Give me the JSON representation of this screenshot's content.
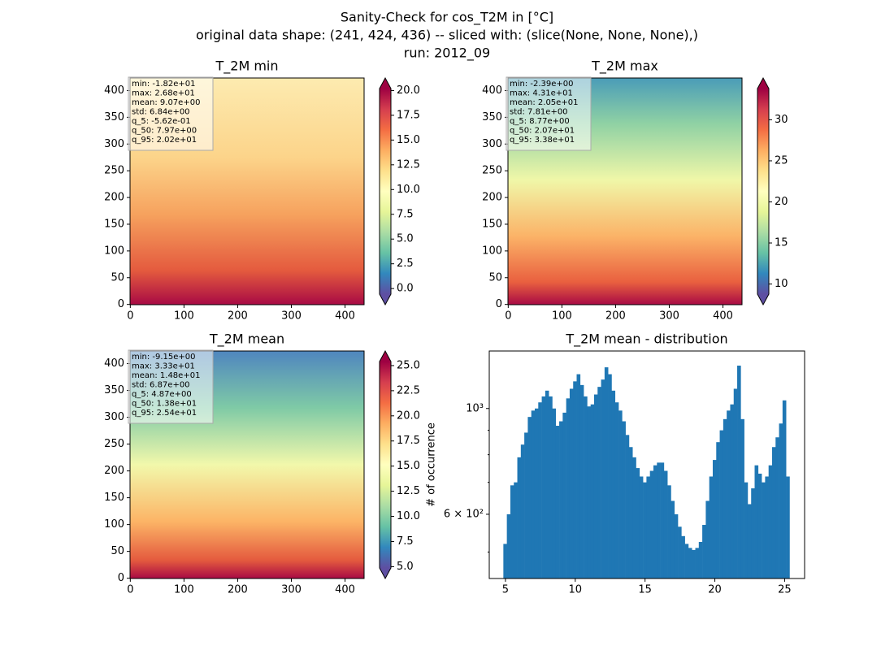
{
  "figure": {
    "title_lines": [
      "Sanity-Check for cos_T2M in [°C]",
      "original data shape: (241, 424, 436) -- sliced with: (slice(None, None, None),)",
      "run: 2012_09"
    ]
  },
  "chart_data": [
    {
      "type": "heatmap",
      "title": "T_2M min",
      "colormap": "Spectral_r",
      "xlim": [
        -0.5,
        435.5
      ],
      "xticks": [
        0,
        100,
        200,
        300,
        400
      ],
      "ylim": [
        -0.5,
        423.5
      ],
      "yticks": [
        0,
        50,
        100,
        150,
        200,
        250,
        300,
        350,
        400
      ],
      "clim": [
        -0.562,
        20.2
      ],
      "cticks": [
        {
          "value": 0,
          "label": "0.0"
        },
        {
          "value": 2.5,
          "label": "2.5"
        },
        {
          "value": 5,
          "label": "5.0"
        },
        {
          "value": 7.5,
          "label": "7.5"
        },
        {
          "value": 10,
          "label": "10.0"
        },
        {
          "value": 12.5,
          "label": "12.5"
        },
        {
          "value": 15,
          "label": "15.0"
        },
        {
          "value": 17.5,
          "label": "17.5"
        },
        {
          "value": 20,
          "label": "20.0"
        }
      ],
      "stats": [
        "min: -1.82e+01",
        "max: 2.68e+01",
        "mean: 9.07e+00",
        "std: 6.84e+00",
        "q_5: -5.62e-01",
        "q_50: 7.97e+00",
        "q_95: 2.02e+01"
      ]
    },
    {
      "type": "heatmap",
      "title": "T_2M max",
      "colormap": "Spectral_r",
      "xlim": [
        -0.5,
        435.5
      ],
      "xticks": [
        0,
        100,
        200,
        300,
        400
      ],
      "ylim": [
        -0.5,
        423.5
      ],
      "yticks": [
        0,
        50,
        100,
        150,
        200,
        250,
        300,
        350,
        400
      ],
      "clim": [
        8.77,
        33.8
      ],
      "cticks": [
        10,
        15,
        20,
        25,
        30
      ],
      "stats": [
        "min: -2.39e+00",
        "max: 4.31e+01",
        "mean: 2.05e+01",
        "std: 7.81e+00",
        "q_5: 8.77e+00",
        "q_50: 2.07e+01",
        "q_95: 3.38e+01"
      ]
    },
    {
      "type": "heatmap",
      "title": "T_2M mean",
      "colormap": "Spectral_r",
      "xlim": [
        -0.5,
        435.5
      ],
      "xticks": [
        0,
        100,
        200,
        300,
        400
      ],
      "ylim": [
        -0.5,
        423.5
      ],
      "yticks": [
        0,
        50,
        100,
        150,
        200,
        250,
        300,
        350,
        400
      ],
      "clim": [
        4.87,
        25.4
      ],
      "cticks": [
        {
          "value": 5,
          "label": "5.0"
        },
        {
          "value": 7.5,
          "label": "7.5"
        },
        {
          "value": 10,
          "label": "10.0"
        },
        {
          "value": 12.5,
          "label": "12.5"
        },
        {
          "value": 15,
          "label": "15.0"
        },
        {
          "value": 17.5,
          "label": "17.5"
        },
        {
          "value": 20,
          "label": "20.0"
        },
        {
          "value": 22.5,
          "label": "22.5"
        },
        {
          "value": 25,
          "label": "25.0"
        }
      ],
      "stats": [
        "min: -9.15e+00",
        "max: 3.33e+01",
        "mean: 1.48e+01",
        "std: 6.87e+00",
        "q_5: 4.87e+00",
        "q_50: 1.38e+01",
        "q_95: 2.54e+01"
      ]
    },
    {
      "type": "histogram",
      "title": "T_2M mean - distribution",
      "ylabel": "# of occurrence",
      "color": "#1f77b4",
      "log_y": true,
      "xlim": [
        3.84,
        26.43
      ],
      "xticks": [
        5,
        10,
        15,
        20,
        25
      ],
      "ylim": [
        440,
        1320
      ],
      "yticks": [
        {
          "value": 600,
          "label": "6 × 10²"
        },
        {
          "value": 1000,
          "label": "10³"
        }
      ],
      "yminorticks": [
        500,
        700,
        800,
        900
      ],
      "bins": [
        4.85,
        5.1,
        5.35,
        5.6,
        5.85,
        6.1,
        6.35,
        6.6,
        6.85,
        7.1,
        7.35,
        7.6,
        7.85,
        8.1,
        8.35,
        8.6,
        8.85,
        9.1,
        9.35,
        9.6,
        9.85,
        10.1,
        10.35,
        10.6,
        10.85,
        11.1,
        11.35,
        11.6,
        11.85,
        12.1,
        12.35,
        12.6,
        12.85,
        13.1,
        13.35,
        13.6,
        13.85,
        14.1,
        14.35,
        14.6,
        14.85,
        15.1,
        15.35,
        15.6,
        15.85,
        16.1,
        16.35,
        16.6,
        16.85,
        17.1,
        17.35,
        17.6,
        17.85,
        18.1,
        18.35,
        18.6,
        18.85,
        19.1,
        19.35,
        19.6,
        19.85,
        20.1,
        20.35,
        20.6,
        20.85,
        21.1,
        21.35,
        21.6,
        21.85,
        22.1,
        22.35,
        22.6,
        22.85,
        23.1,
        23.35,
        23.6,
        23.85,
        24.1,
        24.35,
        24.6,
        24.85,
        25.1,
        25.35
      ],
      "values": [
        520,
        600,
        690,
        700,
        790,
        840,
        890,
        960,
        990,
        1000,
        1030,
        1060,
        1090,
        1060,
        1000,
        920,
        940,
        980,
        1050,
        1100,
        1140,
        1180,
        1120,
        1060,
        1010,
        1020,
        1070,
        1110,
        1150,
        1220,
        1180,
        1090,
        1030,
        990,
        940,
        880,
        830,
        790,
        750,
        720,
        700,
        720,
        740,
        760,
        770,
        770,
        740,
        690,
        640,
        600,
        565,
        540,
        520,
        510,
        505,
        510,
        525,
        570,
        640,
        720,
        780,
        850,
        900,
        950,
        990,
        1020,
        1100,
        1230,
        950,
        700,
        630,
        680,
        760,
        730,
        700,
        720,
        760,
        830,
        870,
        930,
        1040,
        720
      ]
    }
  ]
}
